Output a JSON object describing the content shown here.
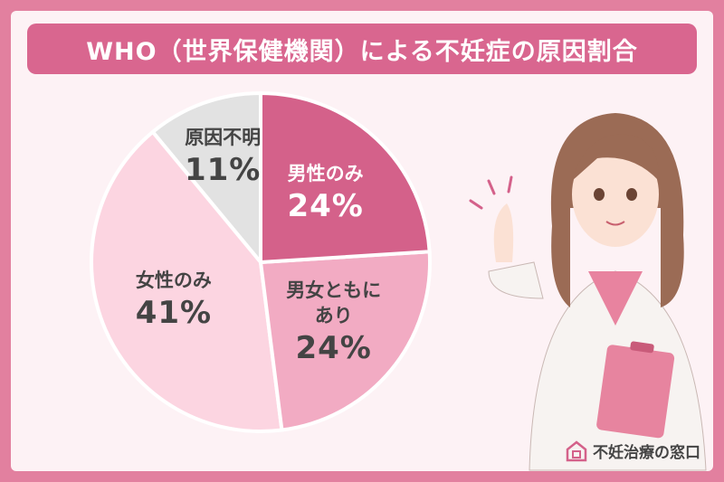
{
  "chart_data": {
    "type": "pie",
    "title": "WHO（世界保健機関）による不妊症の原因割合",
    "categories": [
      "男性のみ",
      "男女ともにあり",
      "女性のみ",
      "原因不明"
    ],
    "values": [
      24,
      24,
      41,
      11
    ],
    "value_labels": [
      "24%",
      "24%",
      "41%",
      "11%"
    ],
    "colors": [
      "#d4618a",
      "#f2abc3",
      "#fcd5e1",
      "#e2e2e2"
    ]
  },
  "logo": "不妊治療の窓口"
}
